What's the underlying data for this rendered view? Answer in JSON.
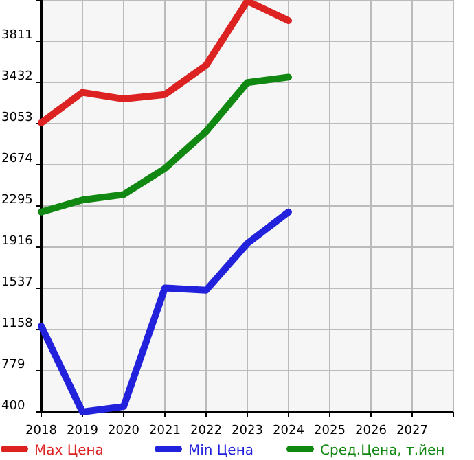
{
  "chart_data": {
    "type": "line",
    "x": [
      2018,
      2019,
      2020,
      2021,
      2022,
      2023,
      2024
    ],
    "series": [
      {
        "name": "Max Цена",
        "color": "#dd2222",
        "values": [
          3060,
          3340,
          3280,
          3320,
          3590,
          4180,
          4000
        ]
      },
      {
        "name": "Min Цена",
        "color": "#2222dd",
        "values": [
          1190,
          400,
          450,
          1540,
          1520,
          1950,
          2240
        ]
      },
      {
        "name": "Сред.Цена, т.йен",
        "color": "#118811",
        "values": [
          2240,
          2350,
          2400,
          2640,
          2980,
          3430,
          3480
        ]
      }
    ],
    "xlim": [
      2018,
      2028
    ],
    "xticks": [
      2018,
      2019,
      2020,
      2021,
      2022,
      2023,
      2024,
      2025,
      2026,
      2027,
      {
        "value": 2028,
        "label": null
      }
    ],
    "ylim": [
      400,
      4190
    ],
    "yticks": [
      400,
      779,
      1158,
      1537,
      1916,
      2295,
      2674,
      3053,
      3432,
      3811,
      {
        "value": 4190,
        "label": null
      }
    ],
    "grid": true,
    "legend": "bottom",
    "marker": "none",
    "line_style": "solid"
  }
}
